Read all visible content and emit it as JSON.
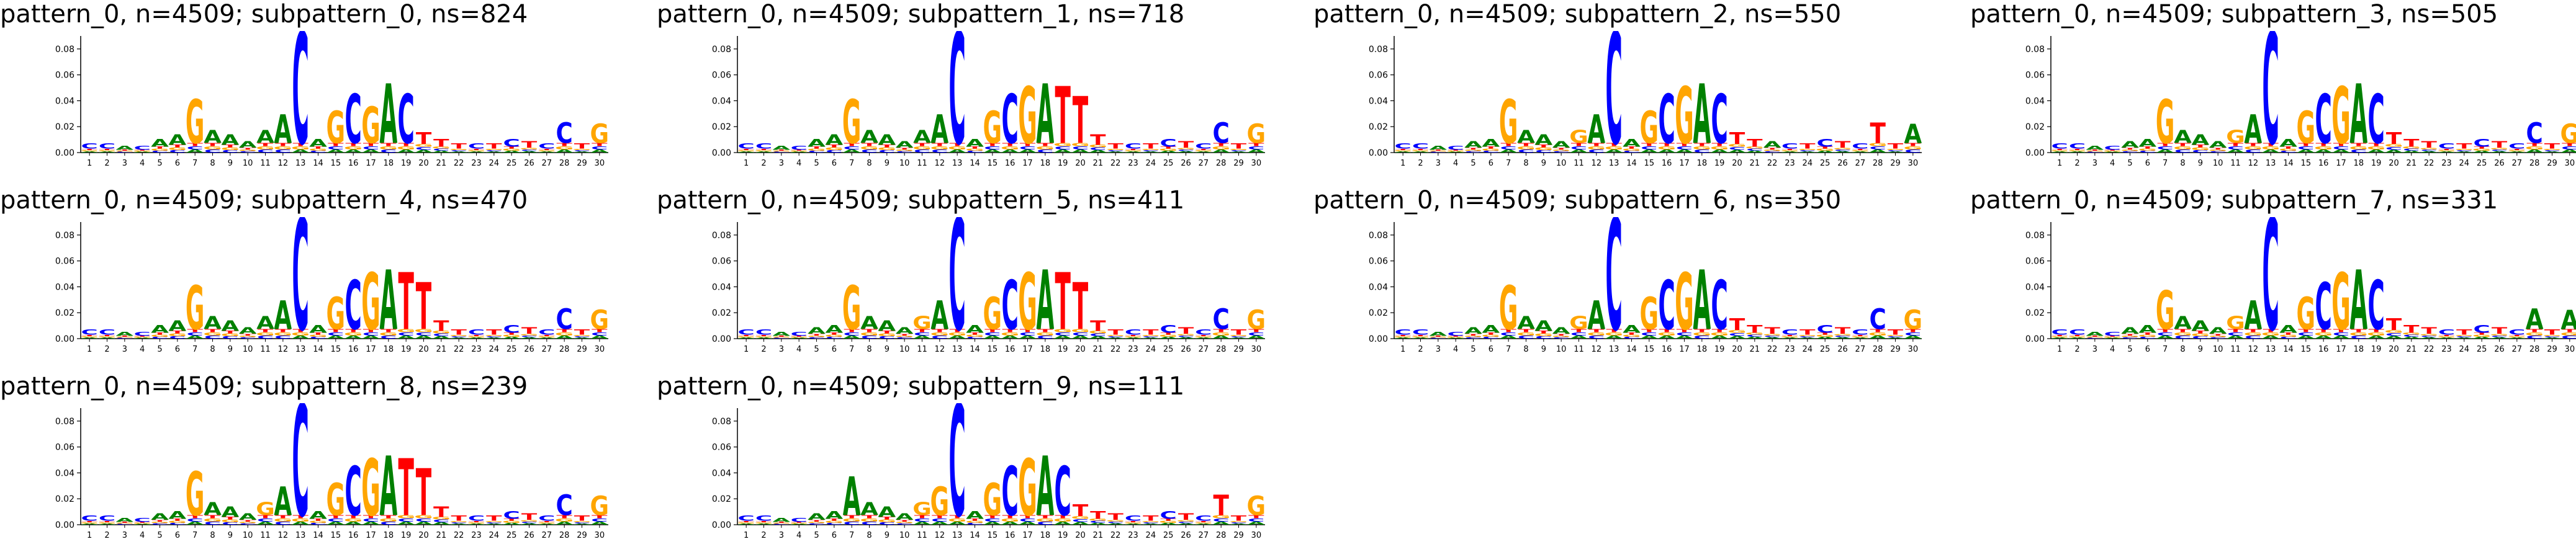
{
  "colors": {
    "A": "#008000",
    "C": "#0000ff",
    "G": "#ffa500",
    "T": "#ff0000",
    "axis": "#000000"
  },
  "chart_data": {
    "type": "sequence-logo",
    "yaxis": {
      "ylim": [
        0,
        0.09
      ],
      "ticks": [
        "0.00",
        "0.02",
        "0.04",
        "0.06",
        "0.08"
      ]
    },
    "positions": [
      "1",
      "2",
      "3",
      "4",
      "5",
      "6",
      "7",
      "8",
      "9",
      "10",
      "11",
      "12",
      "13",
      "14",
      "15",
      "16",
      "17",
      "18",
      "19",
      "20",
      "21",
      "22",
      "23",
      "24",
      "25",
      "26",
      "27",
      "28",
      "29",
      "30"
    ],
    "panels": [
      {
        "title": "pattern_0, n=4509; subpattern_0, ns=824",
        "tops": [
          [
            "C",
            0.004
          ],
          [
            "C",
            0.004
          ],
          [
            "A",
            0.003
          ],
          [
            "C",
            0.003
          ],
          [
            "A",
            0.006
          ],
          [
            "A",
            0.008
          ],
          [
            "G",
            0.034
          ],
          [
            "A",
            0.01
          ],
          [
            "A",
            0.008
          ],
          [
            "A",
            0.005
          ],
          [
            "A",
            0.01
          ],
          [
            "A",
            0.022
          ],
          [
            "C",
            0.086
          ],
          [
            "A",
            0.006
          ],
          [
            "G",
            0.025
          ],
          [
            "C",
            0.038
          ],
          [
            "G",
            0.028
          ],
          [
            "A",
            0.046
          ],
          [
            "C",
            0.038
          ],
          [
            "T",
            0.009
          ],
          [
            "T",
            0.006
          ],
          [
            "T",
            0.004
          ],
          [
            "C",
            0.004
          ],
          [
            "T",
            0.004
          ],
          [
            "C",
            0.006
          ],
          [
            "T",
            0.005
          ],
          [
            "C",
            0.004
          ],
          [
            "C",
            0.016
          ],
          [
            "T",
            0.004
          ],
          [
            "G",
            0.015
          ]
        ]
      },
      {
        "title": "pattern_0, n=4509; subpattern_1, ns=718",
        "tops": [
          [
            "C",
            0.004
          ],
          [
            "C",
            0.004
          ],
          [
            "A",
            0.003
          ],
          [
            "C",
            0.003
          ],
          [
            "A",
            0.006
          ],
          [
            "A",
            0.008
          ],
          [
            "G",
            0.034
          ],
          [
            "A",
            0.01
          ],
          [
            "A",
            0.008
          ],
          [
            "A",
            0.005
          ],
          [
            "A",
            0.01
          ],
          [
            "A",
            0.022
          ],
          [
            "C",
            0.086
          ],
          [
            "A",
            0.006
          ],
          [
            "G",
            0.025
          ],
          [
            "C",
            0.038
          ],
          [
            "G",
            0.044
          ],
          [
            "A",
            0.046
          ],
          [
            "T",
            0.044
          ],
          [
            "T",
            0.036
          ],
          [
            "T",
            0.008
          ],
          [
            "T",
            0.004
          ],
          [
            "C",
            0.004
          ],
          [
            "T",
            0.004
          ],
          [
            "C",
            0.006
          ],
          [
            "T",
            0.005
          ],
          [
            "C",
            0.004
          ],
          [
            "C",
            0.016
          ],
          [
            "T",
            0.004
          ],
          [
            "G",
            0.015
          ]
        ]
      },
      {
        "title": "pattern_0, n=4509; subpattern_2, ns=550",
        "tops": [
          [
            "C",
            0.004
          ],
          [
            "C",
            0.004
          ],
          [
            "A",
            0.003
          ],
          [
            "C",
            0.003
          ],
          [
            "A",
            0.005
          ],
          [
            "A",
            0.006
          ],
          [
            "G",
            0.034
          ],
          [
            "A",
            0.01
          ],
          [
            "A",
            0.008
          ],
          [
            "A",
            0.005
          ],
          [
            "G",
            0.01
          ],
          [
            "A",
            0.022
          ],
          [
            "C",
            0.086
          ],
          [
            "A",
            0.006
          ],
          [
            "G",
            0.025
          ],
          [
            "C",
            0.038
          ],
          [
            "G",
            0.044
          ],
          [
            "A",
            0.046
          ],
          [
            "C",
            0.038
          ],
          [
            "T",
            0.009
          ],
          [
            "T",
            0.006
          ],
          [
            "A",
            0.005
          ],
          [
            "C",
            0.004
          ],
          [
            "T",
            0.004
          ],
          [
            "C",
            0.006
          ],
          [
            "T",
            0.005
          ],
          [
            "C",
            0.004
          ],
          [
            "T",
            0.016
          ],
          [
            "T",
            0.004
          ],
          [
            "A",
            0.015
          ]
        ]
      },
      {
        "title": "pattern_0, n=4509; subpattern_3, ns=505",
        "tops": [
          [
            "C",
            0.004
          ],
          [
            "C",
            0.004
          ],
          [
            "A",
            0.003
          ],
          [
            "C",
            0.003
          ],
          [
            "A",
            0.005
          ],
          [
            "A",
            0.006
          ],
          [
            "G",
            0.034
          ],
          [
            "A",
            0.01
          ],
          [
            "A",
            0.008
          ],
          [
            "A",
            0.005
          ],
          [
            "G",
            0.01
          ],
          [
            "A",
            0.022
          ],
          [
            "C",
            0.086
          ],
          [
            "A",
            0.006
          ],
          [
            "G",
            0.025
          ],
          [
            "C",
            0.038
          ],
          [
            "G",
            0.044
          ],
          [
            "A",
            0.046
          ],
          [
            "C",
            0.038
          ],
          [
            "T",
            0.009
          ],
          [
            "T",
            0.006
          ],
          [
            "T",
            0.005
          ],
          [
            "C",
            0.004
          ],
          [
            "T",
            0.004
          ],
          [
            "C",
            0.006
          ],
          [
            "T",
            0.005
          ],
          [
            "C",
            0.004
          ],
          [
            "C",
            0.016
          ],
          [
            "T",
            0.004
          ],
          [
            "G",
            0.015
          ]
        ]
      },
      {
        "title": "pattern_0, n=4509; subpattern_4, ns=470",
        "tops": [
          [
            "C",
            0.004
          ],
          [
            "C",
            0.004
          ],
          [
            "A",
            0.003
          ],
          [
            "C",
            0.003
          ],
          [
            "A",
            0.006
          ],
          [
            "A",
            0.008
          ],
          [
            "G",
            0.034
          ],
          [
            "A",
            0.01
          ],
          [
            "A",
            0.008
          ],
          [
            "A",
            0.005
          ],
          [
            "A",
            0.01
          ],
          [
            "A",
            0.022
          ],
          [
            "C",
            0.086
          ],
          [
            "A",
            0.006
          ],
          [
            "G",
            0.025
          ],
          [
            "C",
            0.038
          ],
          [
            "G",
            0.044
          ],
          [
            "A",
            0.046
          ],
          [
            "T",
            0.044
          ],
          [
            "T",
            0.036
          ],
          [
            "T",
            0.008
          ],
          [
            "T",
            0.004
          ],
          [
            "C",
            0.004
          ],
          [
            "T",
            0.004
          ],
          [
            "C",
            0.006
          ],
          [
            "T",
            0.005
          ],
          [
            "C",
            0.004
          ],
          [
            "C",
            0.016
          ],
          [
            "T",
            0.004
          ],
          [
            "G",
            0.015
          ]
        ]
      },
      {
        "title": "pattern_0, n=4509; subpattern_5, ns=411",
        "tops": [
          [
            "C",
            0.004
          ],
          [
            "C",
            0.004
          ],
          [
            "A",
            0.003
          ],
          [
            "C",
            0.003
          ],
          [
            "A",
            0.005
          ],
          [
            "A",
            0.006
          ],
          [
            "G",
            0.034
          ],
          [
            "A",
            0.01
          ],
          [
            "A",
            0.008
          ],
          [
            "A",
            0.005
          ],
          [
            "G",
            0.01
          ],
          [
            "A",
            0.022
          ],
          [
            "C",
            0.086
          ],
          [
            "A",
            0.006
          ],
          [
            "G",
            0.025
          ],
          [
            "C",
            0.038
          ],
          [
            "G",
            0.044
          ],
          [
            "A",
            0.046
          ],
          [
            "T",
            0.044
          ],
          [
            "T",
            0.036
          ],
          [
            "T",
            0.008
          ],
          [
            "T",
            0.004
          ],
          [
            "C",
            0.004
          ],
          [
            "T",
            0.004
          ],
          [
            "C",
            0.006
          ],
          [
            "T",
            0.005
          ],
          [
            "C",
            0.004
          ],
          [
            "C",
            0.016
          ],
          [
            "T",
            0.004
          ],
          [
            "G",
            0.015
          ]
        ]
      },
      {
        "title": "pattern_0, n=4509; subpattern_6, ns=350",
        "tops": [
          [
            "C",
            0.004
          ],
          [
            "C",
            0.004
          ],
          [
            "A",
            0.003
          ],
          [
            "C",
            0.003
          ],
          [
            "A",
            0.005
          ],
          [
            "A",
            0.006
          ],
          [
            "G",
            0.034
          ],
          [
            "A",
            0.01
          ],
          [
            "A",
            0.008
          ],
          [
            "A",
            0.005
          ],
          [
            "G",
            0.01
          ],
          [
            "A",
            0.022
          ],
          [
            "C",
            0.086
          ],
          [
            "A",
            0.006
          ],
          [
            "G",
            0.025
          ],
          [
            "C",
            0.038
          ],
          [
            "G",
            0.044
          ],
          [
            "A",
            0.046
          ],
          [
            "C",
            0.038
          ],
          [
            "T",
            0.009
          ],
          [
            "T",
            0.006
          ],
          [
            "T",
            0.005
          ],
          [
            "C",
            0.004
          ],
          [
            "T",
            0.004
          ],
          [
            "C",
            0.006
          ],
          [
            "T",
            0.005
          ],
          [
            "C",
            0.004
          ],
          [
            "C",
            0.016
          ],
          [
            "T",
            0.004
          ],
          [
            "G",
            0.015
          ]
        ]
      },
      {
        "title": "pattern_0, n=4509; subpattern_7, ns=331",
        "tops": [
          [
            "C",
            0.004
          ],
          [
            "C",
            0.004
          ],
          [
            "A",
            0.003
          ],
          [
            "C",
            0.003
          ],
          [
            "A",
            0.005
          ],
          [
            "A",
            0.006
          ],
          [
            "G",
            0.03
          ],
          [
            "A",
            0.01
          ],
          [
            "A",
            0.008
          ],
          [
            "A",
            0.005
          ],
          [
            "G",
            0.01
          ],
          [
            "A",
            0.022
          ],
          [
            "C",
            0.086
          ],
          [
            "A",
            0.006
          ],
          [
            "G",
            0.025
          ],
          [
            "C",
            0.036
          ],
          [
            "G",
            0.044
          ],
          [
            "A",
            0.046
          ],
          [
            "C",
            0.038
          ],
          [
            "T",
            0.009
          ],
          [
            "T",
            0.006
          ],
          [
            "T",
            0.005
          ],
          [
            "C",
            0.004
          ],
          [
            "T",
            0.004
          ],
          [
            "C",
            0.006
          ],
          [
            "T",
            0.005
          ],
          [
            "C",
            0.004
          ],
          [
            "A",
            0.016
          ],
          [
            "T",
            0.004
          ],
          [
            "A",
            0.015
          ]
        ]
      },
      {
        "title": "pattern_0, n=4509; subpattern_8, ns=239",
        "tops": [
          [
            "C",
            0.004
          ],
          [
            "C",
            0.004
          ],
          [
            "A",
            0.003
          ],
          [
            "C",
            0.003
          ],
          [
            "A",
            0.005
          ],
          [
            "A",
            0.006
          ],
          [
            "G",
            0.034
          ],
          [
            "A",
            0.01
          ],
          [
            "A",
            0.008
          ],
          [
            "A",
            0.005
          ],
          [
            "G",
            0.01
          ],
          [
            "A",
            0.022
          ],
          [
            "C",
            0.086
          ],
          [
            "A",
            0.006
          ],
          [
            "G",
            0.025
          ],
          [
            "C",
            0.038
          ],
          [
            "G",
            0.044
          ],
          [
            "A",
            0.046
          ],
          [
            "T",
            0.044
          ],
          [
            "T",
            0.036
          ],
          [
            "T",
            0.008
          ],
          [
            "T",
            0.004
          ],
          [
            "C",
            0.004
          ],
          [
            "T",
            0.004
          ],
          [
            "C",
            0.006
          ],
          [
            "T",
            0.005
          ],
          [
            "C",
            0.004
          ],
          [
            "C",
            0.016
          ],
          [
            "T",
            0.004
          ],
          [
            "G",
            0.015
          ]
        ]
      },
      {
        "title": "pattern_0, n=4509; subpattern_9, ns=111",
        "tops": [
          [
            "C",
            0.004
          ],
          [
            "C",
            0.004
          ],
          [
            "A",
            0.003
          ],
          [
            "C",
            0.003
          ],
          [
            "A",
            0.005
          ],
          [
            "A",
            0.006
          ],
          [
            "A",
            0.03
          ],
          [
            "A",
            0.01
          ],
          [
            "A",
            0.008
          ],
          [
            "A",
            0.005
          ],
          [
            "G",
            0.01
          ],
          [
            "G",
            0.022
          ],
          [
            "C",
            0.086
          ],
          [
            "A",
            0.006
          ],
          [
            "G",
            0.025
          ],
          [
            "C",
            0.038
          ],
          [
            "G",
            0.044
          ],
          [
            "A",
            0.046
          ],
          [
            "C",
            0.038
          ],
          [
            "T",
            0.009
          ],
          [
            "T",
            0.006
          ],
          [
            "T",
            0.005
          ],
          [
            "C",
            0.004
          ],
          [
            "T",
            0.004
          ],
          [
            "C",
            0.006
          ],
          [
            "T",
            0.005
          ],
          [
            "C",
            0.004
          ],
          [
            "T",
            0.016
          ],
          [
            "T",
            0.004
          ],
          [
            "G",
            0.015
          ]
        ]
      }
    ]
  }
}
